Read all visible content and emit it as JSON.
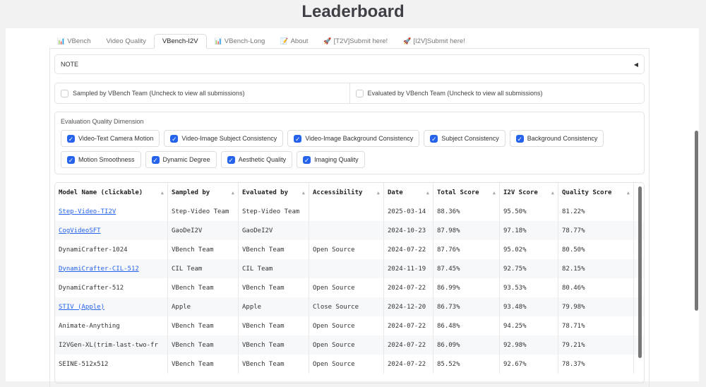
{
  "title": "Leaderboard",
  "tabs": [
    {
      "label": "VBench",
      "icon": "bar-chart-icon",
      "active": false
    },
    {
      "label": "Video Quality",
      "icon": "",
      "active": false
    },
    {
      "label": "VBench-I2V",
      "icon": "",
      "active": true
    },
    {
      "label": "VBench-Long",
      "icon": "bar-chart-icon",
      "active": false
    },
    {
      "label": "About",
      "icon": "memo-icon",
      "active": false
    },
    {
      "label": "[T2V]Submit here!",
      "icon": "rocket-icon",
      "active": false
    },
    {
      "label": "[I2V]Submit here!",
      "icon": "rocket-icon",
      "active": false
    }
  ],
  "note": {
    "label": "NOTE",
    "toggle": "◀"
  },
  "filters": [
    {
      "label": "Sampled by VBench Team (Uncheck to view all submissions)",
      "checked": false
    },
    {
      "label": "Evaluated by VBench Team (Uncheck to view all submissions)",
      "checked": false
    }
  ],
  "dimensions": {
    "label": "Evaluation Quality Dimension",
    "items": [
      "Video-Text Camera Motion",
      "Video-Image Subject Consistency",
      "Video-Image Background Consistency",
      "Subject Consistency",
      "Background Consistency",
      "Motion Smoothness",
      "Dynamic Degree",
      "Aesthetic Quality",
      "Imaging Quality"
    ]
  },
  "table": {
    "headers": [
      "Model Name (clickable)",
      "Sampled by",
      "Evaluated by",
      "Accessibility",
      "Date",
      "Total Score",
      "I2V Score",
      "Quality Score"
    ],
    "rows": [
      {
        "link": true,
        "cells": [
          "Step-Video-TI2V",
          "Step-Video Team",
          "Step-Video Team",
          "",
          "2025-03-14",
          "88.36%",
          "95.50%",
          "81.22%"
        ]
      },
      {
        "link": true,
        "cells": [
          "CogVideoSFT",
          "GaoDeI2V",
          "GaoDeI2V",
          "",
          "2024-10-23",
          "87.98%",
          "97.18%",
          "78.77%"
        ]
      },
      {
        "link": false,
        "cells": [
          "DynamiCrafter-1024",
          "VBench Team",
          "VBench Team",
          "Open Source",
          "2024-07-22",
          "87.76%",
          "95.02%",
          "80.50%"
        ]
      },
      {
        "link": true,
        "cells": [
          "DynamiCrafter-CIL-512",
          "CIL Team",
          "CIL Team",
          "",
          "2024-11-19",
          "87.45%",
          "92.75%",
          "82.15%"
        ]
      },
      {
        "link": false,
        "cells": [
          "DynamiCrafter-512",
          "VBench Team",
          "VBench Team",
          "Open Source",
          "2024-07-22",
          "86.99%",
          "93.53%",
          "80.46%"
        ]
      },
      {
        "link": true,
        "cells": [
          "STIV (Apple)",
          "Apple",
          "Apple",
          "Close Source",
          "2024-12-20",
          "86.73%",
          "93.48%",
          "79.98%"
        ]
      },
      {
        "link": false,
        "cells": [
          "Animate-Anything",
          "VBench Team",
          "VBench Team",
          "Open Source",
          "2024-07-22",
          "86.48%",
          "94.25%",
          "78.71%"
        ]
      },
      {
        "link": false,
        "cells": [
          "I2VGen-XL(trim-last-two-fr",
          "VBench Team",
          "VBench Team",
          "Open Source",
          "2024-07-22",
          "86.09%",
          "92.98%",
          "79.21%"
        ]
      },
      {
        "link": false,
        "cells": [
          "SEINE-512x512",
          "VBench Team",
          "VBench Team",
          "Open Source",
          "2024-07-22",
          "85.52%",
          "92.67%",
          "78.37%"
        ]
      }
    ]
  },
  "colors": {
    "accent": "#2563eb",
    "link": "#2563eb"
  }
}
